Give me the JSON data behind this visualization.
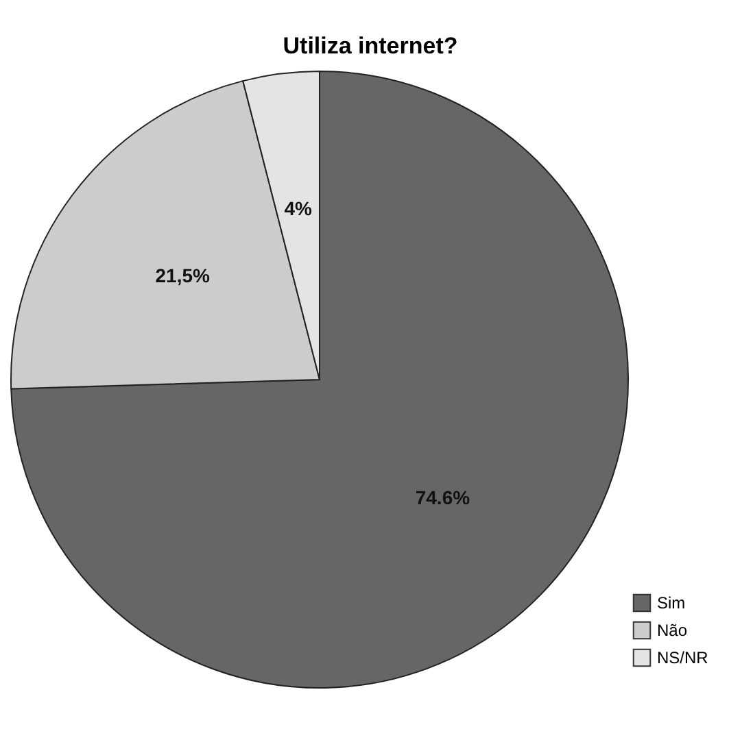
{
  "chart_data": {
    "type": "pie",
    "title": "Utiliza internet?",
    "categories": [
      "Sim",
      "Não",
      "NS/NR"
    ],
    "values": [
      74.6,
      21.5,
      4
    ],
    "value_labels": [
      "74.6%",
      "21,5%",
      "4%"
    ],
    "colors": [
      "#666666",
      "#cccccc",
      "#e4e4e4"
    ],
    "legend": "bottom right"
  }
}
